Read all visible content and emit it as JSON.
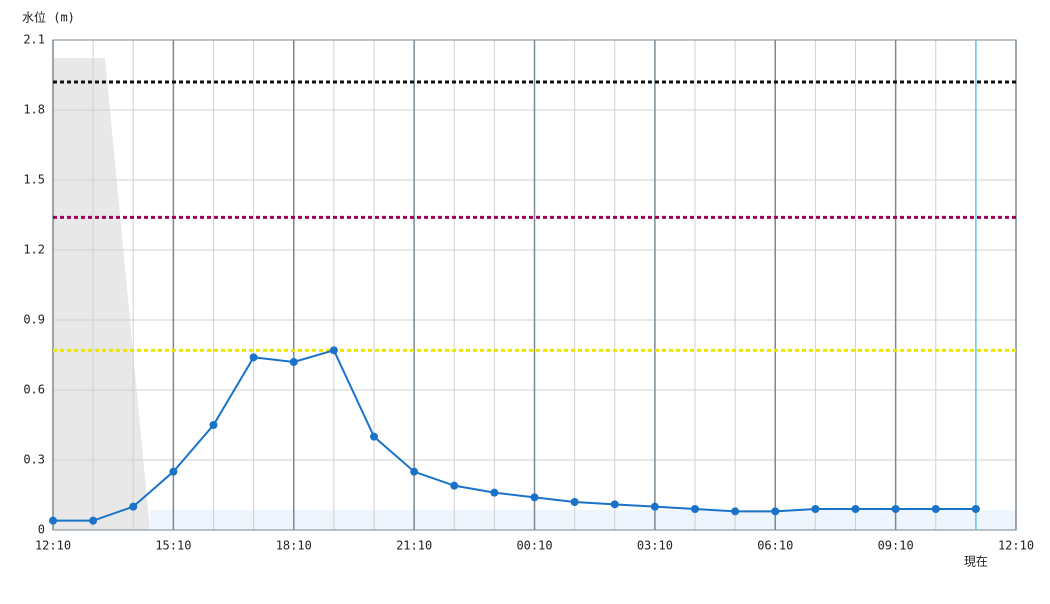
{
  "chart_data": {
    "type": "line",
    "y_label": "水位 (m)",
    "categories": [
      "12:10",
      null,
      null,
      "15:10",
      null,
      null,
      "18:10",
      null,
      null,
      "21:10",
      null,
      null,
      "00:10",
      null,
      null,
      "03:10",
      null,
      null,
      "06:10",
      null,
      null,
      "09:10",
      null,
      null,
      "12:10"
    ],
    "series": [
      {
        "name": "水位",
        "color": "#1a73c8",
        "values": [
          0.04,
          0.04,
          0.1,
          0.25,
          0.45,
          0.74,
          0.72,
          0.77,
          0.4,
          0.25,
          0.19,
          0.16,
          0.14,
          0.12,
          0.11,
          0.1,
          0.09,
          0.08,
          0.08,
          0.09,
          0.09,
          0.09,
          0.09,
          0.09,
          null
        ]
      }
    ],
    "ylim": [
      0,
      2.1
    ],
    "yticks": [
      0,
      0.3,
      0.6,
      0.9,
      1.2,
      1.5,
      1.8,
      2.1
    ],
    "thresholds": [
      {
        "value": 1.92,
        "color": "#111111"
      },
      {
        "value": 1.34,
        "color": "#a0005a"
      },
      {
        "value": 0.77,
        "color": "#f2e200"
      }
    ],
    "now": {
      "label": "現在",
      "index": 23,
      "color": "#5cc8e8"
    },
    "grid": true
  }
}
